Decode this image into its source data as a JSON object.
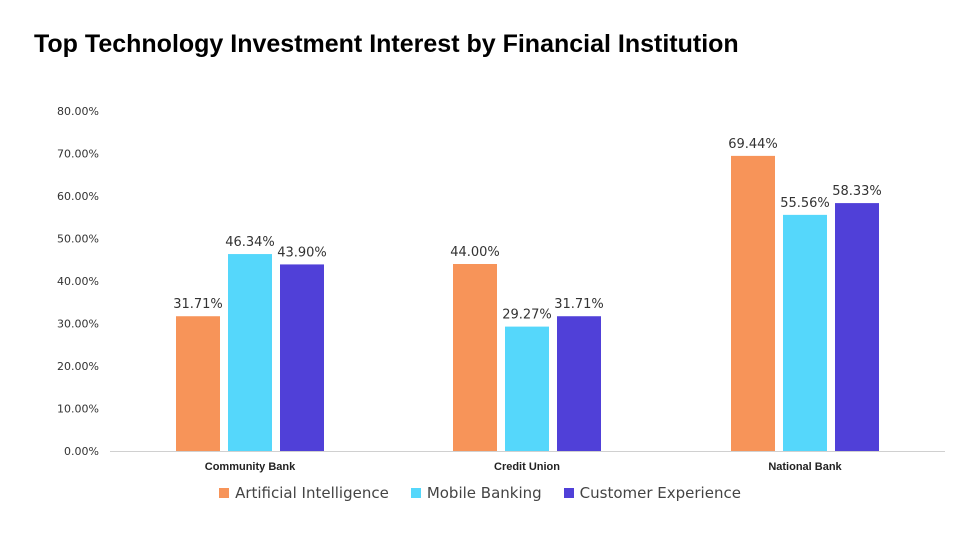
{
  "chart_data": {
    "type": "bar",
    "title": "Top Technology Investment Interest by Financial Institution",
    "xlabel": "",
    "ylabel": "",
    "categories": [
      "Community Bank",
      "Credit Union",
      "National Bank"
    ],
    "series": [
      {
        "name": "Artificial Intelligence",
        "color": "#F79459",
        "values": [
          31.71,
          44.0,
          69.44
        ]
      },
      {
        "name": "Mobile Banking",
        "color": "#55D7FB",
        "values": [
          46.34,
          29.27,
          55.56
        ]
      },
      {
        "name": "Customer Experience",
        "color": "#5040D8",
        "values": [
          43.9,
          31.71,
          58.33
        ]
      }
    ],
    "value_labels": [
      [
        "31.71%",
        "44.00%",
        "69.44%"
      ],
      [
        "46.34%",
        "29.27%",
        "55.56%"
      ],
      [
        "43.90%",
        "31.71%",
        "58.33%"
      ]
    ],
    "ylim": [
      0,
      80
    ],
    "yticks": [
      "0.00%",
      "10.00%",
      "20.00%",
      "30.00%",
      "40.00%",
      "50.00%",
      "60.00%",
      "70.00%",
      "80.00%"
    ],
    "grid": false,
    "legend_position": "bottom"
  }
}
